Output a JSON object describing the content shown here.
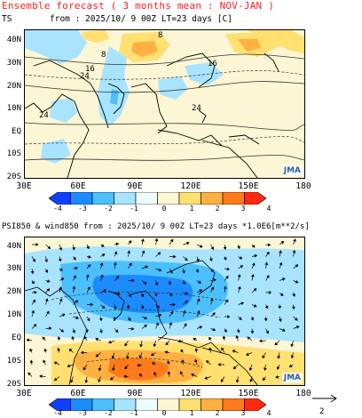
{
  "page": {
    "title": "Ensemble forecast ( 3 months mean : NOV-JAN )"
  },
  "top_panel": {
    "title_left": "TS",
    "title_main": "from : 2025/10/ 9 00Z LT=23 days  [C]",
    "logo": "JMA",
    "y_labels": [
      "40N",
      "30N",
      "20N",
      "10N",
      "EQ",
      "10S",
      "20S"
    ],
    "x_labels": [
      "30E",
      "60E",
      "90E",
      "120E",
      "150E",
      "180"
    ],
    "contour_labels": [
      "8",
      "8",
      "16",
      "16",
      "24",
      "24",
      "24"
    ],
    "colorbar": {
      "ticks": [
        "-4",
        "-3",
        "-2",
        "-1",
        "0",
        "1",
        "2",
        "3",
        "4"
      ],
      "colors": [
        "#1040ff",
        "#1a8cff",
        "#4cc0ff",
        "#a8e4ff",
        "#eefcff",
        "#fdf6d4",
        "#ffe070",
        "#ffb040",
        "#ff7a1a",
        "#ff2a10"
      ]
    }
  },
  "bottom_panel": {
    "title": "PSI850 & wind850 from : 2025/10/ 9 00Z LT=23 days  *1.0E6[m**2/s]",
    "logo": "JMA",
    "y_labels": [
      "40N",
      "30N",
      "20N",
      "10N",
      "EQ",
      "10S",
      "20S"
    ],
    "x_labels": [
      "30E",
      "60E",
      "90E",
      "120E",
      "150E",
      "180"
    ],
    "vector_ref": "2",
    "colorbar": {
      "ticks": [
        "-4",
        "-3",
        "-2",
        "-1",
        "0",
        "1",
        "2",
        "3",
        "4"
      ],
      "colors": [
        "#1040ff",
        "#1a8cff",
        "#4cc0ff",
        "#a8e4ff",
        "#eefcff",
        "#fdf6d4",
        "#ffe070",
        "#ffb040",
        "#ff7a1a",
        "#ff2a10"
      ]
    }
  }
}
